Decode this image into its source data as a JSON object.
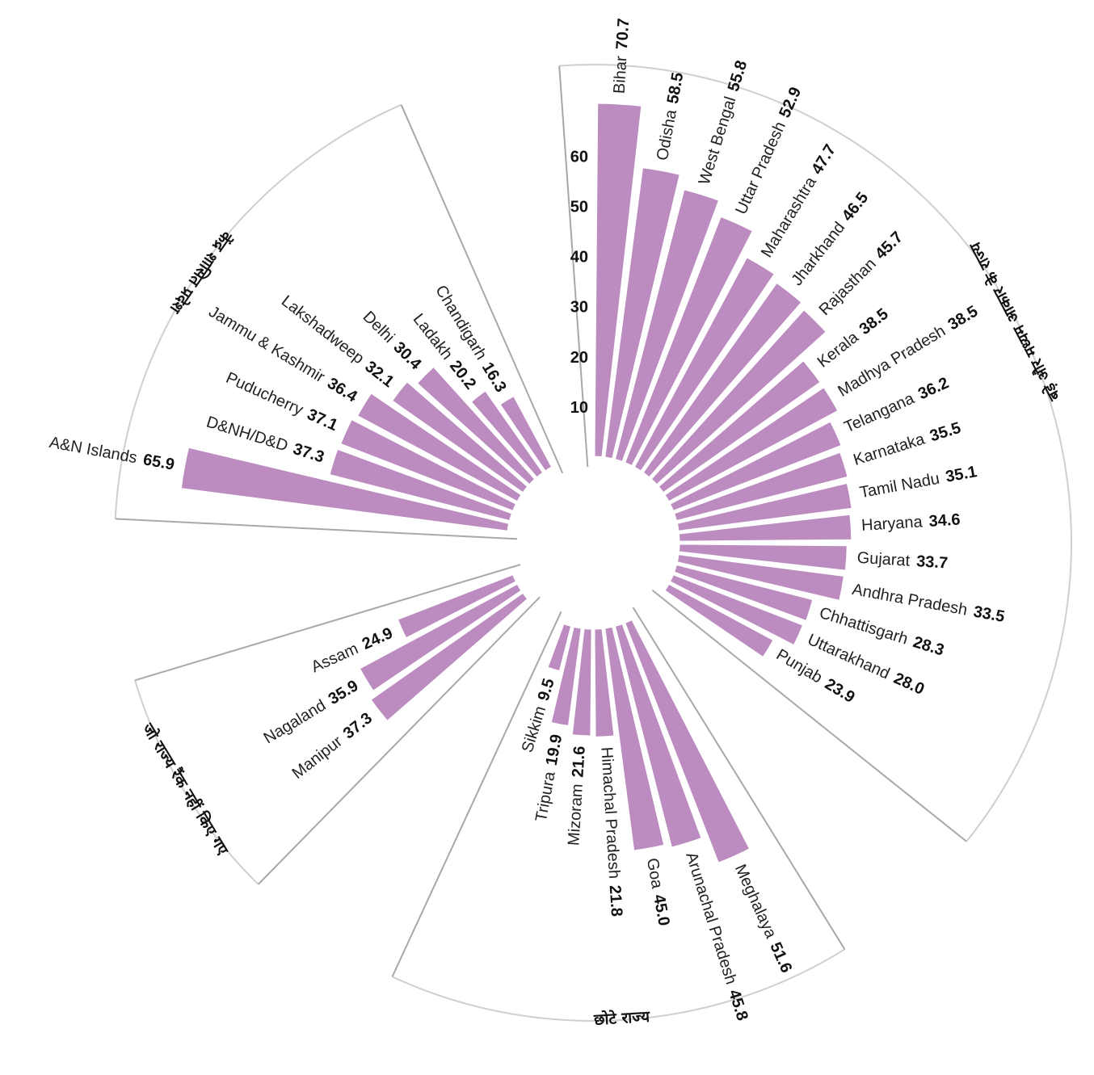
{
  "chart_data": {
    "type": "bar",
    "layout": "circular",
    "colors": {
      "bar": "#bc8bbf",
      "guide": "#cfcfcf",
      "divider": "#a8a8a8"
    },
    "radial_ticks": [
      "10",
      "20",
      "30",
      "40",
      "50",
      "60"
    ],
    "ylim": [
      0,
      70.7
    ],
    "groups": [
      {
        "label": "केंद्र शासित प्रदेश",
        "bars": [
          {
            "name": "Chandigarh",
            "value": 16.3,
            "label": "16.3"
          },
          {
            "name": "Ladakh",
            "value": 20.2,
            "label": "20.2"
          },
          {
            "name": "Delhi",
            "value": 30.4,
            "label": "30.4"
          },
          {
            "name": "Lakshadweep",
            "value": 32.1,
            "label": "32.1"
          },
          {
            "name": "Jammu & Kashmir",
            "value": 36.4,
            "label": "36.4"
          },
          {
            "name": "Puducherry",
            "value": 37.1,
            "label": "37.1"
          },
          {
            "name": "D&NH/D&D",
            "value": 37.3,
            "label": "37.3"
          },
          {
            "name": "A&N Islands",
            "value": 65.9,
            "label": "65.9"
          }
        ]
      },
      {
        "label": "जो राज्य रैंक नहीं किए गए",
        "bars": [
          {
            "name": "Assam",
            "value": 24.9,
            "label": "24.9"
          },
          {
            "name": "Nagaland",
            "value": 35.9,
            "label": "35.9"
          },
          {
            "name": "Manipur",
            "value": 37.3,
            "label": "37.3"
          }
        ]
      },
      {
        "label": "छोटे राज्य",
        "bars": [
          {
            "name": "Sikkim",
            "value": 9.5,
            "label": "9.5"
          },
          {
            "name": "Tripura",
            "value": 19.9,
            "label": "19.9"
          },
          {
            "name": "Mizoram",
            "value": 21.6,
            "label": "21.6"
          },
          {
            "name": "Himachal Pradesh",
            "value": 21.8,
            "label": "21.8"
          },
          {
            "name": "Goa",
            "value": 45.0,
            "label": "45.0"
          },
          {
            "name": "Arunachal Pradesh",
            "value": 45.8,
            "label": "45.8"
          },
          {
            "name": "Meghalaya",
            "value": 51.6,
            "label": "51.6"
          }
        ]
      },
      {
        "label": "बड़े और मध्यम आकार के राज्य",
        "bars": [
          {
            "name": "Punjab",
            "value": 23.9,
            "label": "23.9"
          },
          {
            "name": "Uttarakhand",
            "value": 28.0,
            "label": "28.0"
          },
          {
            "name": "Chhattisgarh",
            "value": 28.3,
            "label": "28.3"
          },
          {
            "name": "Andhra Pradesh",
            "value": 33.5,
            "label": "33.5"
          },
          {
            "name": "Gujarat",
            "value": 33.7,
            "label": "33.7"
          },
          {
            "name": "Haryana",
            "value": 34.6,
            "label": "34.6"
          },
          {
            "name": "Tamil Nadu",
            "value": 35.1,
            "label": "35.1"
          },
          {
            "name": "Karnataka",
            "value": 35.5,
            "label": "35.5"
          },
          {
            "name": "Telangana",
            "value": 36.2,
            "label": "36.2"
          },
          {
            "name": "Madhya Pradesh",
            "value": 38.5,
            "label": "38.5"
          },
          {
            "name": "Kerala",
            "value": 38.5,
            "label": "38.5"
          },
          {
            "name": "Rajasthan",
            "value": 45.7,
            "label": "45.7"
          },
          {
            "name": "Jharkhand",
            "value": 46.5,
            "label": "46.5"
          },
          {
            "name": "Maharashtra",
            "value": 47.7,
            "label": "47.7"
          },
          {
            "name": "Uttar Pradesh",
            "value": 52.9,
            "label": "52.9"
          },
          {
            "name": "West Bengal",
            "value": 55.8,
            "label": "55.8"
          },
          {
            "name": "Odisha",
            "value": 58.5,
            "label": "58.5"
          },
          {
            "name": "Bihar",
            "value": 70.7,
            "label": "70.7"
          }
        ]
      }
    ]
  }
}
